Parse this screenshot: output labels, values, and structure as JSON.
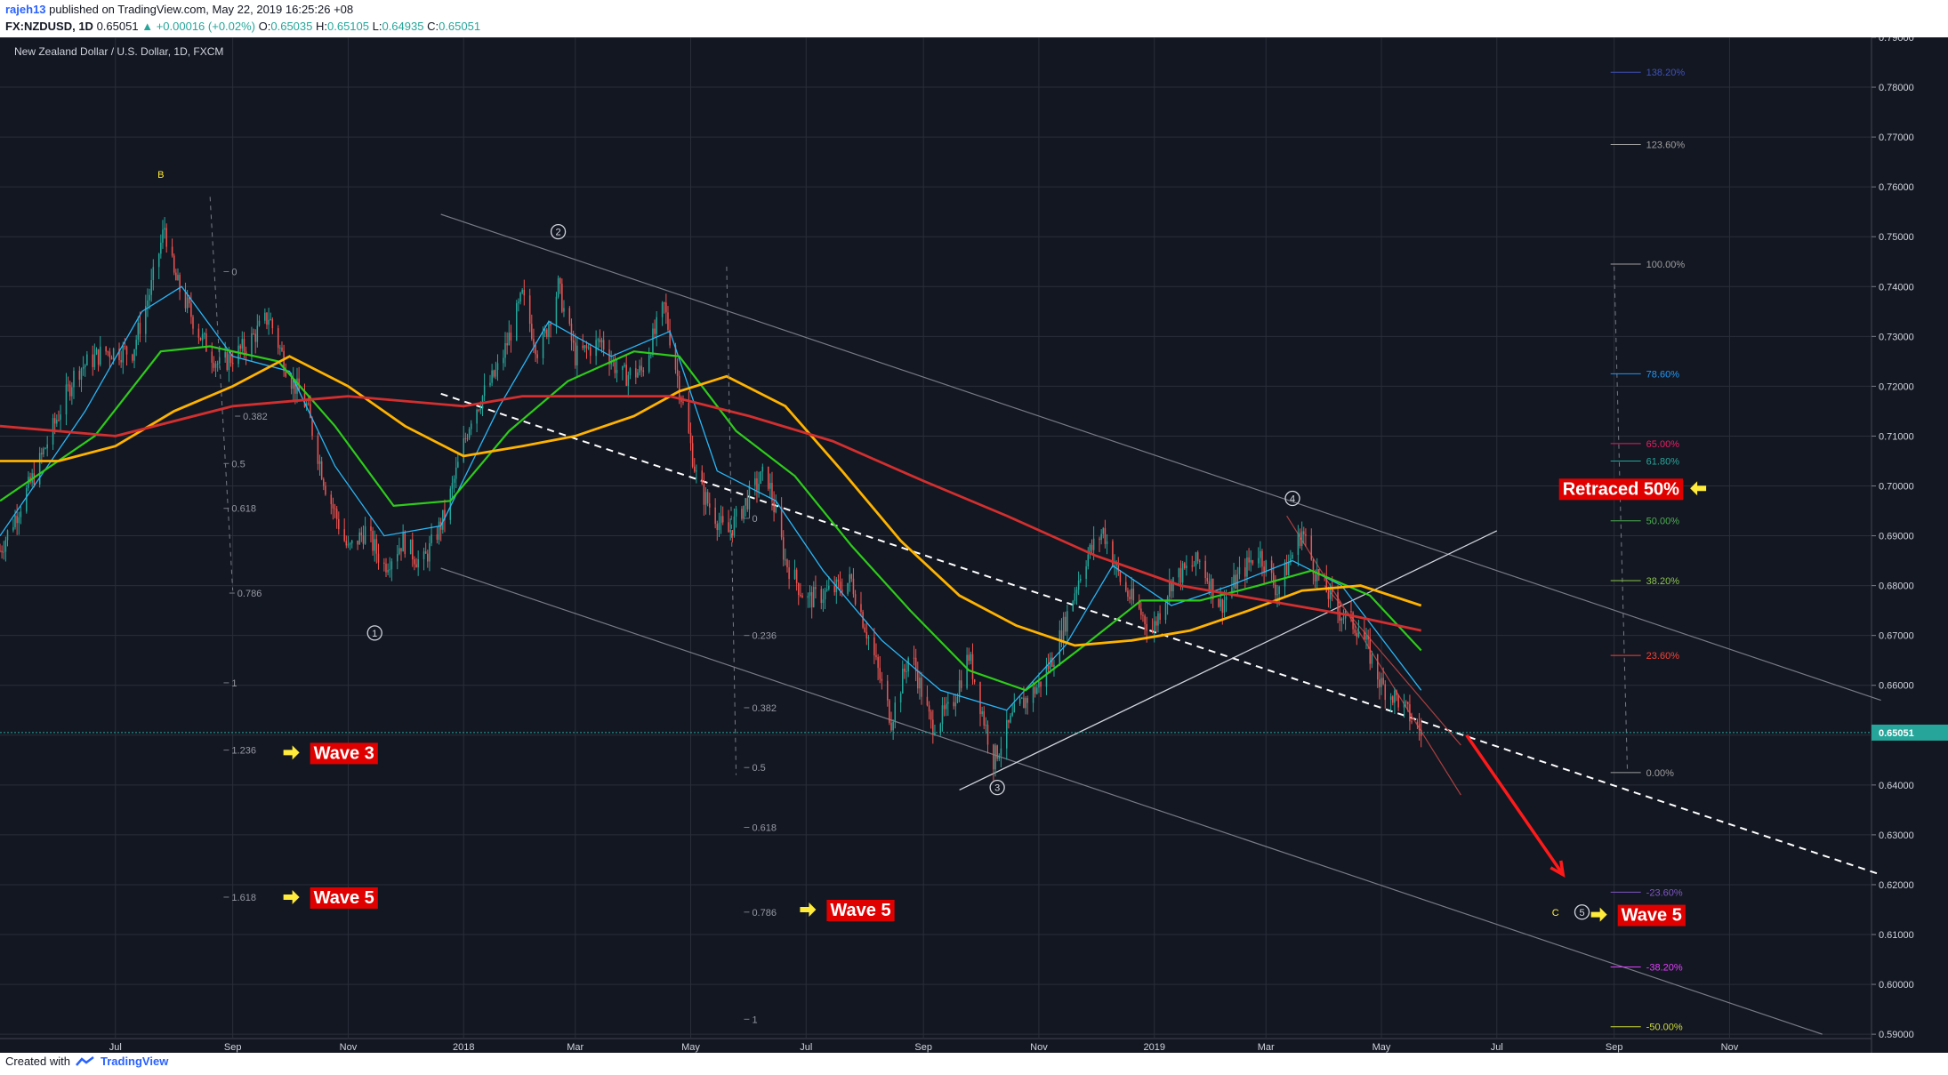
{
  "header": {
    "user": "rajeh13",
    "published": "published on TradingView.com, May 22, 2019 16:25:26 +08",
    "symbol": "FX:NZDUSD, 1D",
    "last": "0.65051",
    "change": "+0.00016 (+0.02%)",
    "o_label": "O:",
    "o": "0.65035",
    "h_label": "H:",
    "h": "0.65105",
    "l_label": "L:",
    "l": "0.64935",
    "c_label": "C:",
    "c": "0.65051"
  },
  "footer": {
    "created_with": "Created with",
    "brand": "TradingView"
  },
  "colors": {
    "background": "#131722",
    "bull": "#26a69a",
    "bear": "#ef5350",
    "ma_fast": "#29b6f6",
    "ma_mid": "#2ecc1a",
    "ma_slow": "#ffb300",
    "ma_long": "#d32f2f",
    "label_box": "#e00000",
    "arrow": "#ffeb3b",
    "red_arrow": "#ff1a1a"
  },
  "chart_data": {
    "type": "line",
    "title": "New Zealand Dollar / U.S. Dollar, 1D, FXCM",
    "xlabel": "",
    "ylabel": "",
    "ylim": [
      0.58913,
      0.79
    ],
    "y_ticks": [
      "0.79000",
      "0.78000",
      "0.77000",
      "0.76000",
      "0.75000",
      "0.74000",
      "0.73000",
      "0.72000",
      "0.71000",
      "0.70000",
      "0.69000",
      "0.68000",
      "0.67000",
      "0.66000",
      "0.65000",
      "0.64000",
      "0.63000",
      "0.62000",
      "0.61000",
      "0.60000",
      "0.59000"
    ],
    "x_ticks": [
      {
        "label": "Jul",
        "date": "2017-07-01"
      },
      {
        "label": "Sep",
        "date": "2017-09-01"
      },
      {
        "label": "Nov",
        "date": "2017-11-01"
      },
      {
        "label": "2018",
        "date": "2018-01-01"
      },
      {
        "label": "Mar",
        "date": "2018-03-01"
      },
      {
        "label": "May",
        "date": "2018-05-01"
      },
      {
        "label": "Jul",
        "date": "2018-07-01"
      },
      {
        "label": "Sep",
        "date": "2018-09-01"
      },
      {
        "label": "Nov",
        "date": "2018-11-01"
      },
      {
        "label": "2019",
        "date": "2019-01-01"
      },
      {
        "label": "Mar",
        "date": "2019-03-01"
      },
      {
        "label": "May",
        "date": "2019-05-01"
      },
      {
        "label": "Jul",
        "date": "2019-07-01"
      },
      {
        "label": "Sep",
        "date": "2019-09-01"
      },
      {
        "label": "Nov",
        "date": "2019-11-01"
      }
    ],
    "x_range": [
      "2017-05-01",
      "2020-01-15"
    ],
    "grid": true,
    "last_price": "0.65051",
    "series": [
      {
        "kind": "close",
        "points": [
          [
            "2017-05-01",
            0.687
          ],
          [
            "2017-05-20",
            0.703
          ],
          [
            "2017-06-10",
            0.723
          ],
          [
            "2017-06-25",
            0.727
          ],
          [
            "2017-07-10",
            0.727
          ],
          [
            "2017-07-20",
            0.74
          ],
          [
            "2017-07-27",
            0.752
          ],
          [
            "2017-08-01",
            0.742
          ],
          [
            "2017-08-15",
            0.73
          ],
          [
            "2017-08-25",
            0.724
          ],
          [
            "2017-09-08",
            0.728
          ],
          [
            "2017-09-20",
            0.734
          ],
          [
            "2017-10-01",
            0.722
          ],
          [
            "2017-10-10",
            0.716
          ],
          [
            "2017-10-20",
            0.7
          ],
          [
            "2017-11-01",
            0.687
          ],
          [
            "2017-11-10",
            0.691
          ],
          [
            "2017-11-20",
            0.684
          ],
          [
            "2017-11-30",
            0.689
          ],
          [
            "2017-12-10",
            0.684
          ],
          [
            "2017-12-22",
            0.694
          ],
          [
            "2018-01-05",
            0.714
          ],
          [
            "2018-01-20",
            0.724
          ],
          [
            "2018-02-01",
            0.738
          ],
          [
            "2018-02-10",
            0.726
          ],
          [
            "2018-02-20",
            0.74
          ],
          [
            "2018-03-01",
            0.726
          ],
          [
            "2018-03-15",
            0.729
          ],
          [
            "2018-03-25",
            0.722
          ],
          [
            "2018-04-05",
            0.723
          ],
          [
            "2018-04-17",
            0.736
          ],
          [
            "2018-04-25",
            0.72
          ],
          [
            "2018-05-05",
            0.7
          ],
          [
            "2018-05-20",
            0.69
          ],
          [
            "2018-06-01",
            0.698
          ],
          [
            "2018-06-10",
            0.703
          ],
          [
            "2018-06-20",
            0.685
          ],
          [
            "2018-07-01",
            0.677
          ],
          [
            "2018-07-15",
            0.679
          ],
          [
            "2018-07-25",
            0.681
          ],
          [
            "2018-08-05",
            0.667
          ],
          [
            "2018-08-15",
            0.653
          ],
          [
            "2018-08-25",
            0.667
          ],
          [
            "2018-09-05",
            0.652
          ],
          [
            "2018-09-15",
            0.655
          ],
          [
            "2018-09-25",
            0.666
          ],
          [
            "2018-10-08",
            0.645
          ],
          [
            "2018-10-20",
            0.655
          ],
          [
            "2018-11-01",
            0.66
          ],
          [
            "2018-11-10",
            0.667
          ],
          [
            "2018-11-25",
            0.685
          ],
          [
            "2018-12-05",
            0.691
          ],
          [
            "2018-12-15",
            0.68
          ],
          [
            "2018-12-31",
            0.671
          ],
          [
            "2019-01-10",
            0.681
          ],
          [
            "2019-01-25",
            0.685
          ],
          [
            "2019-02-05",
            0.676
          ],
          [
            "2019-02-15",
            0.682
          ],
          [
            "2019-02-25",
            0.687
          ],
          [
            "2019-03-07",
            0.679
          ],
          [
            "2019-03-20",
            0.691
          ],
          [
            "2019-03-27",
            0.683
          ],
          [
            "2019-04-08",
            0.675
          ],
          [
            "2019-04-20",
            0.671
          ],
          [
            "2019-05-01",
            0.66
          ],
          [
            "2019-05-10",
            0.657
          ],
          [
            "2019-05-22",
            0.6505
          ]
        ]
      },
      {
        "kind": "ma_fast",
        "points": [
          [
            "2017-05-01",
            0.69
          ],
          [
            "2017-06-15",
            0.715
          ],
          [
            "2017-07-15",
            0.735
          ],
          [
            "2017-08-05",
            0.74
          ],
          [
            "2017-09-01",
            0.726
          ],
          [
            "2017-10-01",
            0.723
          ],
          [
            "2017-10-25",
            0.704
          ],
          [
            "2017-11-20",
            0.69
          ],
          [
            "2017-12-20",
            0.692
          ],
          [
            "2018-01-20",
            0.716
          ],
          [
            "2018-02-15",
            0.733
          ],
          [
            "2018-03-20",
            0.726
          ],
          [
            "2018-04-20",
            0.731
          ],
          [
            "2018-05-15",
            0.703
          ],
          [
            "2018-06-15",
            0.697
          ],
          [
            "2018-07-10",
            0.683
          ],
          [
            "2018-08-10",
            0.669
          ],
          [
            "2018-09-10",
            0.659
          ],
          [
            "2018-10-15",
            0.655
          ],
          [
            "2018-11-15",
            0.668
          ],
          [
            "2018-12-10",
            0.684
          ],
          [
            "2019-01-10",
            0.676
          ],
          [
            "2019-02-10",
            0.68
          ],
          [
            "2019-03-15",
            0.685
          ],
          [
            "2019-04-10",
            0.68
          ],
          [
            "2019-05-22",
            0.659
          ]
        ]
      },
      {
        "kind": "ma_mid",
        "points": [
          [
            "2017-05-01",
            0.697
          ],
          [
            "2017-06-20",
            0.71
          ],
          [
            "2017-07-25",
            0.727
          ],
          [
            "2017-08-20",
            0.728
          ],
          [
            "2017-09-25",
            0.725
          ],
          [
            "2017-10-25",
            0.712
          ],
          [
            "2017-11-25",
            0.696
          ],
          [
            "2017-12-25",
            0.697
          ],
          [
            "2018-01-25",
            0.711
          ],
          [
            "2018-02-25",
            0.721
          ],
          [
            "2018-04-01",
            0.727
          ],
          [
            "2018-04-25",
            0.726
          ],
          [
            "2018-05-25",
            0.711
          ],
          [
            "2018-06-25",
            0.702
          ],
          [
            "2018-07-25",
            0.688
          ],
          [
            "2018-08-25",
            0.675
          ],
          [
            "2018-09-25",
            0.663
          ],
          [
            "2018-10-25",
            0.659
          ],
          [
            "2018-11-25",
            0.668
          ],
          [
            "2018-12-25",
            0.677
          ],
          [
            "2019-01-25",
            0.677
          ],
          [
            "2019-02-25",
            0.68
          ],
          [
            "2019-03-25",
            0.683
          ],
          [
            "2019-04-25",
            0.678
          ],
          [
            "2019-05-22",
            0.667
          ]
        ]
      },
      {
        "kind": "ma_slow",
        "points": [
          [
            "2017-05-01",
            0.705
          ],
          [
            "2017-06-01",
            0.705
          ],
          [
            "2017-07-01",
            0.708
          ],
          [
            "2017-08-01",
            0.715
          ],
          [
            "2017-09-01",
            0.72
          ],
          [
            "2017-10-01",
            0.726
          ],
          [
            "2017-11-01",
            0.72
          ],
          [
            "2017-12-01",
            0.712
          ],
          [
            "2018-01-01",
            0.706
          ],
          [
            "2018-02-01",
            0.708
          ],
          [
            "2018-03-01",
            0.71
          ],
          [
            "2018-04-01",
            0.714
          ],
          [
            "2018-04-25",
            0.719
          ],
          [
            "2018-05-20",
            0.722
          ],
          [
            "2018-06-20",
            0.716
          ],
          [
            "2018-07-20",
            0.703
          ],
          [
            "2018-08-20",
            0.689
          ],
          [
            "2018-09-20",
            0.678
          ],
          [
            "2018-10-20",
            0.672
          ],
          [
            "2018-11-20",
            0.668
          ],
          [
            "2018-12-20",
            0.669
          ],
          [
            "2019-01-20",
            0.671
          ],
          [
            "2019-02-20",
            0.675
          ],
          [
            "2019-03-20",
            0.679
          ],
          [
            "2019-04-20",
            0.68
          ],
          [
            "2019-05-22",
            0.676
          ]
        ]
      },
      {
        "kind": "ma_long",
        "points": [
          [
            "2017-05-01",
            0.712
          ],
          [
            "2017-07-01",
            0.71
          ],
          [
            "2017-09-01",
            0.716
          ],
          [
            "2017-11-01",
            0.718
          ],
          [
            "2018-01-01",
            0.716
          ],
          [
            "2018-02-01",
            0.718
          ],
          [
            "2018-03-01",
            0.718
          ],
          [
            "2018-04-20",
            0.718
          ],
          [
            "2018-06-01",
            0.714
          ],
          [
            "2018-07-15",
            0.709
          ],
          [
            "2018-09-01",
            0.701
          ],
          [
            "2018-10-15",
            0.694
          ],
          [
            "2018-12-01",
            0.686
          ],
          [
            "2019-01-15",
            0.68
          ],
          [
            "2019-03-01",
            0.677
          ],
          [
            "2019-04-15",
            0.674
          ],
          [
            "2019-05-22",
            0.671
          ]
        ]
      }
    ],
    "lines": [
      {
        "kind": "channel",
        "from": [
          "2017-12-20",
          0.7545
        ],
        "to": [
          "2020-01-20",
          0.657
        ]
      },
      {
        "kind": "channel",
        "from": [
          "2017-12-20",
          0.6835
        ],
        "to": [
          "2019-12-20",
          0.59
        ]
      },
      {
        "kind": "dashed",
        "from": [
          "2017-12-20",
          0.7185
        ],
        "to": [
          "2020-01-20",
          0.622
        ]
      },
      {
        "kind": "support",
        "from": [
          "2018-09-20",
          0.639
        ],
        "to": [
          "2019-07-01",
          0.691
        ]
      },
      {
        "kind": "support2",
        "from": [
          "2019-03-12",
          0.694
        ],
        "to": [
          "2019-06-12",
          0.638
        ]
      },
      {
        "kind": "support2",
        "from": [
          "2019-04-01",
          0.68
        ],
        "to": [
          "2019-06-12",
          0.648
        ]
      }
    ],
    "wave_labels": [
      {
        "text": "B",
        "date": "2017-07-25",
        "y": 0.7625,
        "style": "yellow"
      },
      {
        "text": "1",
        "date": "2017-11-15",
        "y": 0.6705,
        "style": "circle"
      },
      {
        "text": "2",
        "date": "2018-02-20",
        "y": 0.751,
        "style": "circle"
      },
      {
        "text": "3",
        "date": "2018-10-10",
        "y": 0.6395,
        "style": "circle"
      },
      {
        "text": "4",
        "date": "2019-03-15",
        "y": 0.6975,
        "style": "circle"
      },
      {
        "text": "5",
        "date": "2019-08-15",
        "y": 0.6145,
        "style": "circle"
      },
      {
        "text": "C",
        "date": "2019-08-01",
        "y": 0.6145,
        "style": "yellow"
      }
    ],
    "fib_left": [
      {
        "text": "0",
        "date": "2017-08-30",
        "y": 0.743
      },
      {
        "text": "0.382",
        "date": "2017-09-05",
        "y": 0.714
      },
      {
        "text": "0.5",
        "date": "2017-08-30",
        "y": 0.7045
      },
      {
        "text": "0.618",
        "date": "2017-08-30",
        "y": 0.6955
      },
      {
        "text": "0.786",
        "date": "2017-09-02",
        "y": 0.6785
      },
      {
        "text": "1",
        "date": "2017-08-30",
        "y": 0.6605
      },
      {
        "text": "1.236",
        "date": "2017-08-30",
        "y": 0.647
      },
      {
        "text": "1.618",
        "date": "2017-08-30",
        "y": 0.6175
      }
    ],
    "fib_mid": [
      {
        "text": "0",
        "date": "2018-06-01",
        "y": 0.6935
      },
      {
        "text": "0.236",
        "date": "2018-06-01",
        "y": 0.67
      },
      {
        "text": "0.382",
        "date": "2018-06-01",
        "y": 0.6555
      },
      {
        "text": "0.5",
        "date": "2018-06-01",
        "y": 0.6435
      },
      {
        "text": "0.618",
        "date": "2018-06-01",
        "y": 0.6315
      },
      {
        "text": "0.786",
        "date": "2018-06-01",
        "y": 0.6145
      },
      {
        "text": "1",
        "date": "2018-06-01",
        "y": 0.593
      }
    ],
    "fib_right": [
      {
        "text": "138.20%",
        "y": 0.783,
        "color": "#3f51b5"
      },
      {
        "text": "123.60%",
        "y": 0.7685,
        "color": "#9e9e9e"
      },
      {
        "text": "100.00%",
        "y": 0.7445,
        "color": "#9e9e9e"
      },
      {
        "text": "78.60%",
        "y": 0.7225,
        "color": "#2196f3"
      },
      {
        "text": "65.00%",
        "y": 0.7085,
        "color": "#e91e63"
      },
      {
        "text": "61.80%",
        "y": 0.705,
        "color": "#26a69a"
      },
      {
        "text": "50.00%",
        "y": 0.693,
        "color": "#4caf50"
      },
      {
        "text": "38.20%",
        "y": 0.681,
        "color": "#8bc34a"
      },
      {
        "text": "23.60%",
        "y": 0.666,
        "color": "#f44336"
      },
      {
        "text": "0.00%",
        "y": 0.6425,
        "color": "#9e9e9e"
      },
      {
        "text": "-23.60%",
        "y": 0.6185,
        "color": "#7e57c2"
      },
      {
        "text": "-38.20%",
        "y": 0.6035,
        "color": "#e040fb"
      },
      {
        "text": "-50.00%",
        "y": 0.5915,
        "color": "#cddc39"
      }
    ],
    "annotations": [
      {
        "text": "Wave 3",
        "date": "2017-10-10",
        "y": 0.6465
      },
      {
        "text": "Wave 5",
        "date": "2017-10-10",
        "y": 0.6175
      },
      {
        "text": "Wave 5",
        "date": "2018-07-10",
        "y": 0.615
      },
      {
        "text": "Retraced 50%",
        "date": "2019-08-01",
        "y": 0.6995
      },
      {
        "text": "Wave 5",
        "date": "2019-09-01",
        "y": 0.614
      }
    ]
  }
}
